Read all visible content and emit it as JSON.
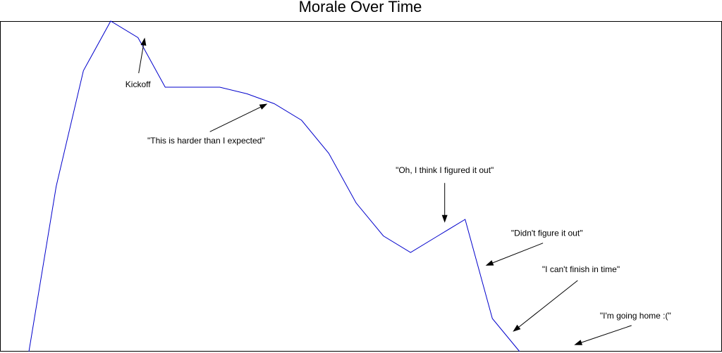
{
  "chart_data": {
    "type": "line",
    "title": "Morale Over Time",
    "xlabel": "",
    "ylabel": "",
    "grid": false,
    "axes_ticks": false,
    "xlim": [
      0,
      100
    ],
    "ylim": [
      0,
      100
    ],
    "series": [
      {
        "color": "#0000cc",
        "points": [
          [
            0,
            0
          ],
          [
            4,
            50
          ],
          [
            8,
            85
          ],
          [
            12,
            100
          ],
          [
            16,
            95
          ],
          [
            20,
            80
          ],
          [
            24,
            80
          ],
          [
            28,
            80
          ],
          [
            32,
            78
          ],
          [
            36,
            75
          ],
          [
            40,
            70
          ],
          [
            44,
            60
          ],
          [
            48,
            45
          ],
          [
            52,
            35
          ],
          [
            56,
            30
          ],
          [
            60,
            35
          ],
          [
            64,
            40
          ],
          [
            68,
            10
          ],
          [
            72,
            0
          ]
        ]
      }
    ],
    "annotations": [
      {
        "text": "Kickoff",
        "point": [
          17,
          95
        ],
        "text_at": [
          16,
          80
        ]
      },
      {
        "text": "\"This is harder than I expected\"",
        "point": [
          35,
          75
        ],
        "text_at": [
          26,
          63
        ]
      },
      {
        "text": "\"Oh, I think I figured it out\"",
        "point": [
          61,
          39
        ],
        "text_at": [
          61,
          54
        ]
      },
      {
        "text": "\"Didn't figure it out\"",
        "point": [
          67,
          26
        ],
        "text_at": [
          76,
          35
        ]
      },
      {
        "text": "\"I can't finish in time\"",
        "point": [
          71,
          6
        ],
        "text_at": [
          81,
          24
        ]
      },
      {
        "text": "\"I'm going home :(\"",
        "point": [
          80,
          2
        ],
        "text_at": [
          89,
          10
        ]
      }
    ]
  }
}
